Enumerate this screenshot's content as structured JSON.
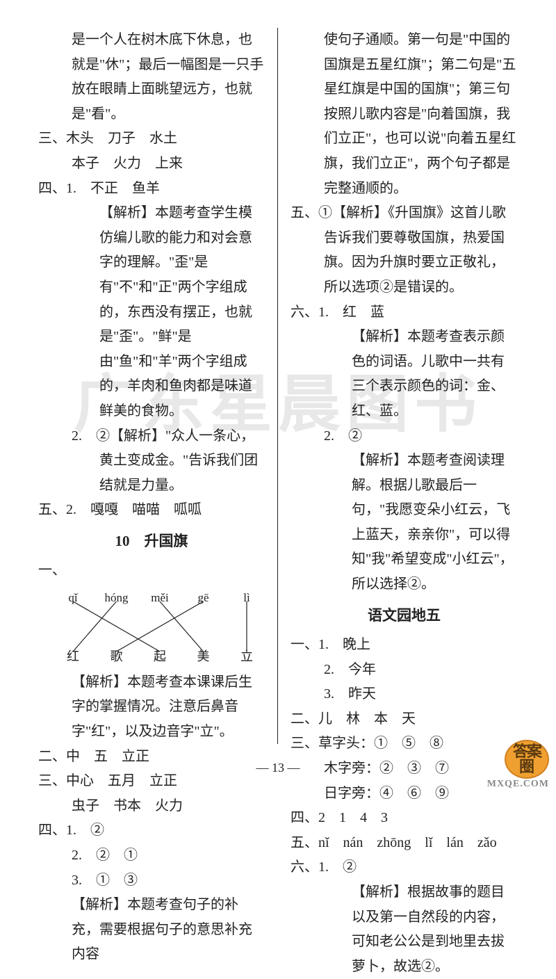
{
  "watermark": "广东星晨图书",
  "logo": {
    "line1": "答案",
    "line2": "圈",
    "sub": "MXQE.COM"
  },
  "pageNumber": "— 13 —",
  "left": {
    "p1": "是一个人在树木底下休息，也就是\"休\"；最后一幅图是一只手放在眼睛上面眺望远方，也就是\"看\"。",
    "san_label": "三、",
    "san_l1": "木头　刀子　水土",
    "san_l2": "本子　火力　上来",
    "si_label": "四、",
    "si_1": "1.　不正　鱼羊",
    "si_1_exp": "【解析】本题考查学生模仿编儿歌的能力和对会意字的理解。\"歪\"是有\"不\"和\"正\"两个字组成的，东西没有摆正，也就是\"歪\"。\"鲜\"是由\"鱼\"和\"羊\"两个字组成的，羊肉和鱼肉都是味道鲜美的食物。",
    "si_2": "2.　②【解析】\"众人一条心，黄土变成金。\"告诉我们团结就是力量。",
    "wu": "五、2.　嘎嘎　喵喵　呱呱",
    "title1": "10　升国旗",
    "yi_label": "一、",
    "diagram": {
      "top": [
        "qǐ",
        "hóng",
        "měi",
        "gē",
        "lì"
      ],
      "bottom": [
        "红",
        "歌",
        "起",
        "美",
        "立"
      ],
      "lines": [
        {
          "from": 0,
          "to": 2
        },
        {
          "from": 1,
          "to": 0
        },
        {
          "from": 2,
          "to": 3
        },
        {
          "from": 3,
          "to": 1
        },
        {
          "from": 4,
          "to": 4
        }
      ]
    },
    "yi_exp": "【解析】本题考查本课课后生字的掌握情况。注意后鼻音字\"红\"，以及边音字\"立\"。",
    "er": "二、中　五　立正",
    "san2_l1": "三、中心　五月　立正",
    "san2_l2": "虫子　书本　火力",
    "si2_label": "四、",
    "si2_1": "1.　②",
    "si2_2": "2.　②　①",
    "si2_3": "3.　①　③",
    "si2_exp": "【解析】本题考查句子的补充，需要根据句子的意思补充内容"
  },
  "right": {
    "p1": "使句子通顺。第一句是\"中国的国旗是五星红旗\"；第二句是\"五星红旗是中国的国旗\"；第三句按照儿歌内容是\"向着国旗，我们立正\"，也可以说\"向着五星红旗，我们立正\"，两个句子都是完整通顺的。",
    "wu": "五、①【解析】《升国旗》这首儿歌告诉我们要尊敬国旗，热爱国旗。因为升旗时要立正敬礼，所以选项②是错误的。",
    "liu_label": "六、",
    "liu_1": "1.　红　蓝",
    "liu_1_exp": "【解析】本题考查表示颜色的词语。儿歌中一共有三个表示颜色的词：金、红、蓝。",
    "liu_2": "2.　②",
    "liu_2_exp": "【解析】本题考查阅读理解。根据儿歌最后一句，\"我愿变朵小红云，飞上蓝天，亲亲你\"，可以得知\"我\"希望变成\"小红云\"，所以选择②。",
    "title2": "语文园地五",
    "yi_label": "一、",
    "yi_1": "1.　晚上",
    "yi_2": "2.　今年",
    "yi_3": "3.　昨天",
    "er": "二、儿　林　本　天",
    "san_l1": "三、草字头：①　⑤　⑧",
    "san_l2": "木字旁：②　③　⑦",
    "san_l3": "日字旁：④　⑥　⑨",
    "si": "四、2　1　4　3",
    "wu2": "五、nǐ　nán　zhōng　lǐ　lán　zǎo",
    "liu2_label": "六、",
    "liu2_1": "1.　②",
    "liu2_exp": "【解析】根据故事的题目以及第一自然段的内容，可知老公公是到地里去拔萝卜，故选②。"
  }
}
